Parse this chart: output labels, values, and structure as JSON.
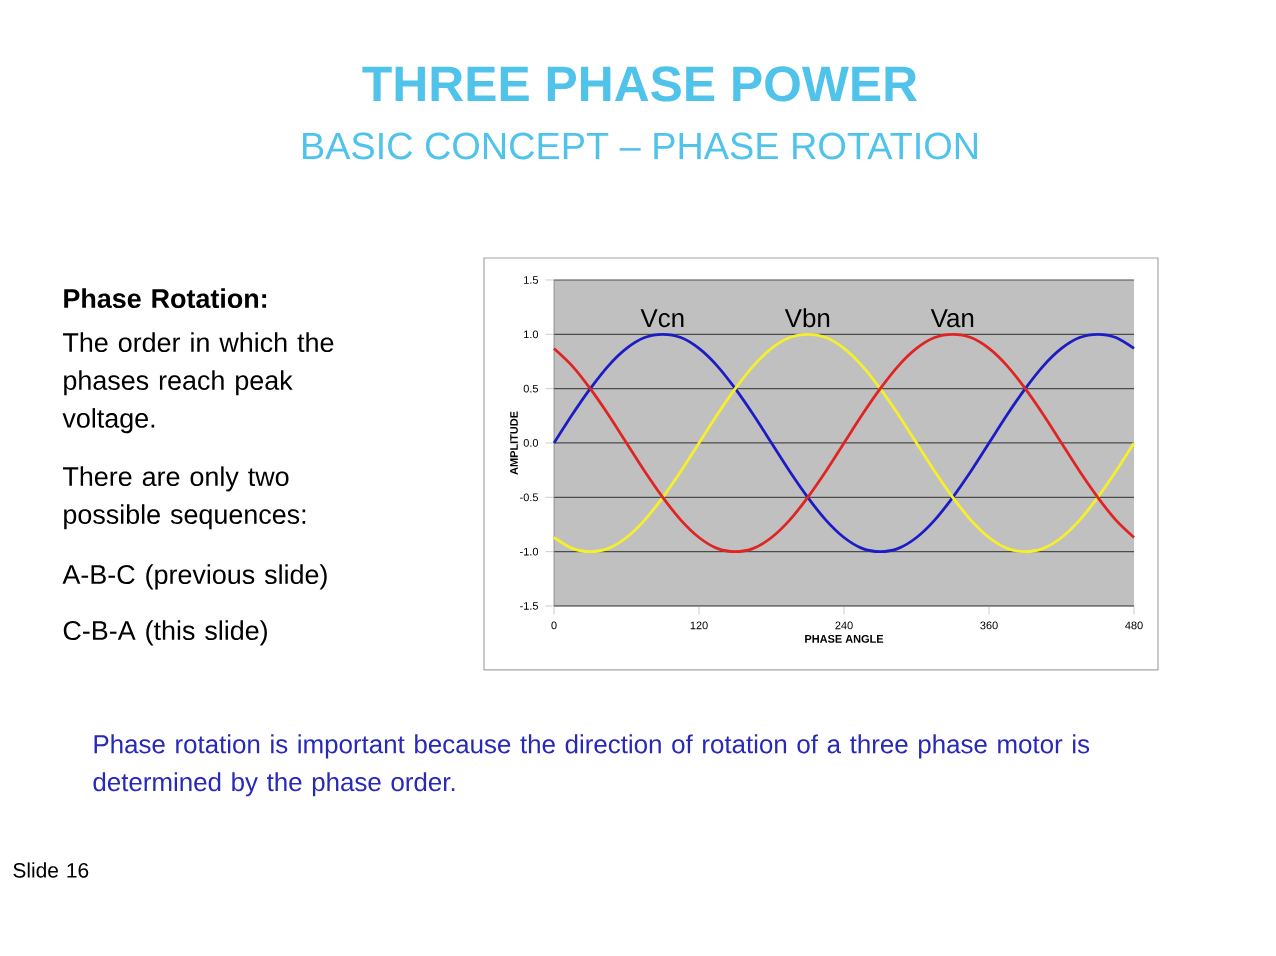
{
  "chart_data": {
    "type": "line",
    "title": "THREE PHASE POWER",
    "subtitle": "BASIC CONCEPT – PHASE ROTATION",
    "xlabel": "PHASE ANGLE",
    "ylabel": "AMPLITUDE",
    "annotations": [
      "**Phase Rotation:**",
      "The order in which the phases reach peak voltage.",
      "There are only two possible sequences:",
      "A-B-C  (previous slide)",
      "C-B-A  (this slide)",
      "Phase rotation is important because the direction of rotation of a three phase motor is determined by the phase order.",
      "Slide 16"
    ],
    "x": [
      0,
      15,
      30,
      45,
      60,
      75,
      90,
      105,
      120,
      135,
      150,
      165,
      180,
      195,
      210,
      225,
      240,
      255,
      270,
      285,
      300,
      315,
      330,
      345,
      360,
      375,
      390,
      405,
      420,
      435,
      450,
      465,
      480
    ],
    "series": [
      {
        "name": "Vcn",
        "color": "#1c1cc4",
        "values": [
          0,
          0.26,
          0.5,
          0.71,
          0.87,
          0.97,
          1,
          0.97,
          0.87,
          0.71,
          0.5,
          0.26,
          0,
          -0.26,
          -0.5,
          -0.71,
          -0.87,
          -0.97,
          -1,
          -0.97,
          -0.87,
          -0.71,
          -0.5,
          -0.26,
          0,
          0.26,
          0.5,
          0.71,
          0.87,
          0.97,
          1,
          0.97,
          0.87
        ]
      },
      {
        "name": "Vbn",
        "color": "#f5f02a",
        "values": [
          -0.87,
          -0.97,
          -1,
          -0.97,
          -0.87,
          -0.71,
          -0.5,
          -0.26,
          0,
          0.26,
          0.5,
          0.71,
          0.87,
          0.97,
          1,
          0.97,
          0.87,
          0.71,
          0.5,
          0.26,
          0,
          -0.26,
          -0.5,
          -0.71,
          -0.87,
          -0.97,
          -1,
          -0.97,
          -0.87,
          -0.71,
          -0.5,
          -0.26,
          0
        ]
      },
      {
        "name": "Van",
        "color": "#e02424",
        "values": [
          0.87,
          0.71,
          0.5,
          0.26,
          0,
          -0.26,
          -0.5,
          -0.71,
          -0.87,
          -0.97,
          -1,
          -0.97,
          -0.87,
          -0.71,
          -0.5,
          -0.26,
          0,
          0.26,
          0.5,
          0.71,
          0.87,
          0.97,
          1,
          0.97,
          0.87,
          0.71,
          0.5,
          0.26,
          0,
          -0.26,
          -0.5,
          -0.71,
          -0.87
        ]
      }
    ],
    "xlim": [
      0,
      480
    ],
    "ylim": [
      -1.5,
      1.5
    ],
    "xticks": [
      0,
      120,
      240,
      360,
      480
    ],
    "yticks": [
      -1.5,
      {
        "value": -1,
        "label": "-1.0"
      },
      -0.5,
      {
        "value": 0,
        "label": "0.0"
      },
      0.5,
      {
        "value": 1,
        "label": "1.0"
      },
      1.5
    ],
    "grid": "y"
  }
}
